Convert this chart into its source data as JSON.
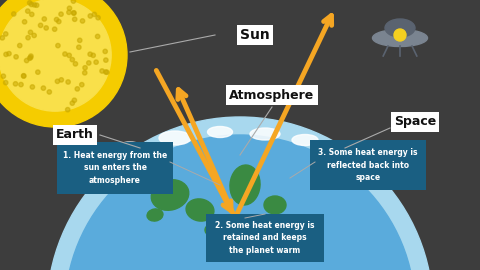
{
  "bg_color": "#3d3d3d",
  "sun_color_outer": "#f5cc00",
  "sun_color_inner": "#f9e04a",
  "sun_dot_color": "#c8a800",
  "earth_color": "#5aabdc",
  "atm_color": "#a8d8ee",
  "land_color": "#3a8a42",
  "land_color2": "#2d7a38",
  "cloud_color": "#ffffff",
  "arrow_color": "#f5a623",
  "label_bg": "#ffffff",
  "label_color": "#111111",
  "box_color": "#1a5f82",
  "box_text_color": "#ffffff",
  "connector_color": "#aaaaaa",
  "ufo_body_color": "#7a8490",
  "ufo_dome_color": "#5a6370",
  "ufo_light_color": "#f5d020",
  "label_sun": "Sun",
  "label_earth": "Earth",
  "label_atmosphere": "Atmosphere",
  "label_space": "Space",
  "box1_text": "1. Heat energy from the\nsun enters the\natmosphere",
  "box2_text": "2. Some heat energy is\nretained and keeps\nthe planet warm",
  "box3_text": "3. Some heat energy is\nreflected back into\nspace"
}
